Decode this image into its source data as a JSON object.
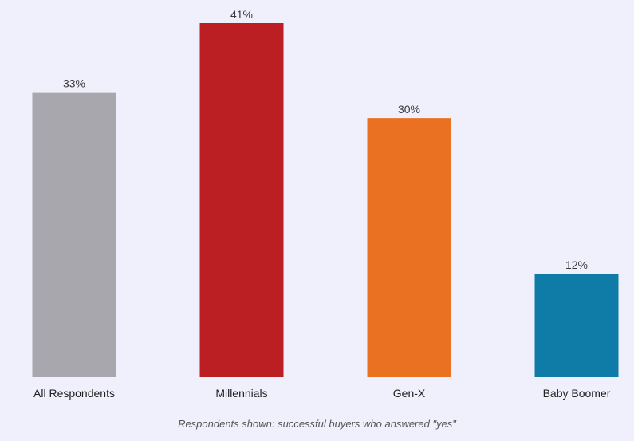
{
  "chart_data": {
    "type": "bar",
    "title": "",
    "xlabel": "",
    "ylabel": "",
    "categories": [
      "All Respondents",
      "Millennials",
      "Gen-X",
      "Baby Boomer"
    ],
    "values": [
      33,
      41,
      30,
      12
    ],
    "data_labels": [
      "33%",
      "41%",
      "30%",
      "12%"
    ],
    "colors": [
      "#a7a7ad",
      "#bb1e23",
      "#eb7122",
      "#0e7ca6"
    ],
    "ylim": [
      0,
      41
    ],
    "grid": false,
    "legend": "none"
  },
  "footnote": "Respondents shown: successful buyers who answered \"yes\""
}
